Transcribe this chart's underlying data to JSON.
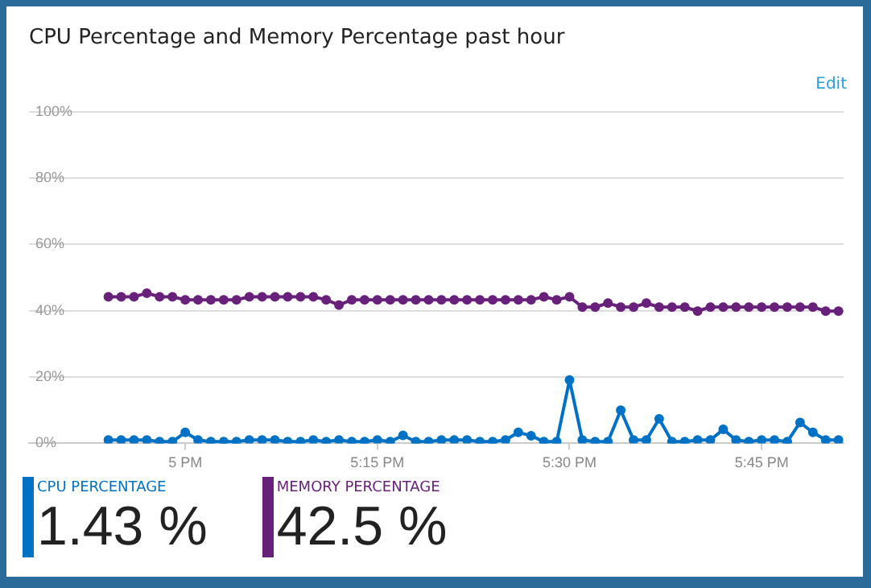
{
  "chart_data": {
    "type": "line",
    "title": "CPU Percentage and Memory Percentage past hour",
    "categories": [
      null,
      null,
      null,
      null,
      null,
      null,
      "5 PM",
      null,
      null,
      null,
      null,
      null,
      null,
      null,
      null,
      null,
      null,
      null,
      null,
      null,
      null,
      "5:15 PM",
      null,
      null,
      null,
      null,
      null,
      null,
      null,
      null,
      null,
      null,
      null,
      null,
      null,
      null,
      "5:30 PM",
      null,
      null,
      null,
      null,
      null,
      null,
      null,
      null,
      null,
      null,
      null,
      null,
      null,
      null,
      "5:45 PM",
      null,
      null,
      null,
      null,
      null,
      null
    ],
    "series": [
      {
        "name": "CPU PERCENTAGE",
        "color": "#0072c6",
        "values": [
          1,
          1,
          1,
          1,
          0.5,
          0.5,
          3.3,
          1,
          0.5,
          0.5,
          0.5,
          1,
          1,
          1,
          0.5,
          0.5,
          1,
          0.5,
          1,
          0.5,
          0.5,
          1,
          0.5,
          2.4,
          0.5,
          0.5,
          1,
          1,
          1,
          0.5,
          0.5,
          1,
          3.3,
          2.3,
          0.5,
          0.5,
          19.1,
          1,
          0.5,
          0.5,
          10,
          1,
          1,
          7.4,
          0.5,
          0.5,
          1,
          1,
          4.2,
          1,
          0.5,
          1,
          1,
          0.5,
          6.3,
          3.3,
          1,
          1
        ]
      },
      {
        "name": "MEMORY PERCENTAGE",
        "color": "#68217a",
        "values": [
          44.2,
          44.2,
          44.2,
          45.3,
          44.2,
          44.2,
          43.3,
          43.3,
          43.3,
          43.3,
          43.3,
          44.2,
          44.2,
          44.2,
          44.2,
          44.2,
          44.2,
          43.3,
          41.7,
          43.3,
          43.3,
          43.3,
          43.3,
          43.3,
          43.3,
          43.3,
          43.3,
          43.3,
          43.3,
          43.3,
          43.3,
          43.3,
          43.3,
          43.3,
          44.2,
          43.3,
          44.2,
          41.1,
          41.1,
          42.3,
          41.1,
          41.1,
          42.3,
          41.1,
          41.1,
          41.1,
          39.9,
          41.1,
          41.1,
          41.1,
          41.1,
          41.1,
          41.1,
          41.1,
          41.1,
          41.1,
          39.9,
          39.9
        ]
      }
    ],
    "ylim": [
      0,
      100
    ],
    "yticks": [
      {
        "value": 0,
        "label": "0%"
      },
      {
        "value": 20,
        "label": "20%"
      },
      {
        "value": 40,
        "label": "40%"
      },
      {
        "value": 60,
        "label": "60%"
      },
      {
        "value": 80,
        "label": "80%"
      },
      {
        "value": 100,
        "label": "100%"
      }
    ],
    "grid": "y",
    "marker": "circle",
    "line_style": "solid",
    "legend": "bottom left",
    "annotations": [
      "1.43 %",
      "42.5 %",
      "Edit"
    ]
  }
}
